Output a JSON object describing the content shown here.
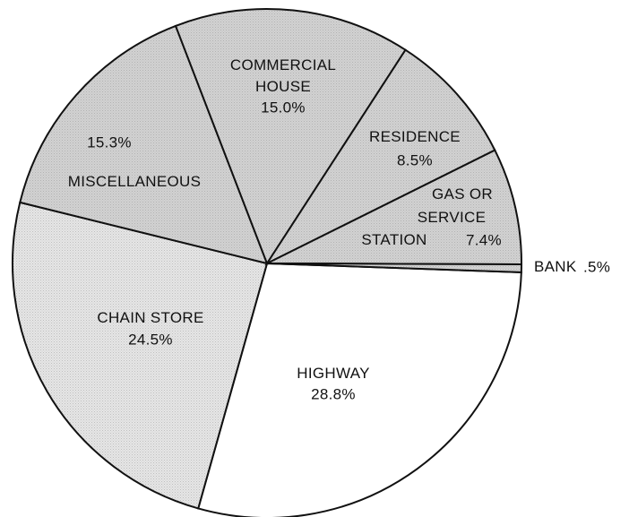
{
  "chart_data": {
    "type": "pie",
    "categories": [
      "HIGHWAY",
      "CHAIN STORE",
      "MISCELLANEOUS",
      "COMMERCIAL\nHOUSE",
      "RESIDENCE",
      "GAS OR\nSERVICE\nSTATION",
      "BANK"
    ],
    "values": [
      28.8,
      24.5,
      15.3,
      15.0,
      8.5,
      7.4,
      0.5
    ],
    "value_labels": [
      "28.8%",
      "24.5%",
      "15.3%",
      "15.0%",
      "8.5%",
      "7.4%",
      ".5%"
    ],
    "colors": [
      "#ffffff",
      "#e6e6e6",
      "#d2d2d2",
      "#d2d2d2",
      "#d2d2d2",
      "#d2d2d2",
      "#d2d2d2"
    ]
  }
}
